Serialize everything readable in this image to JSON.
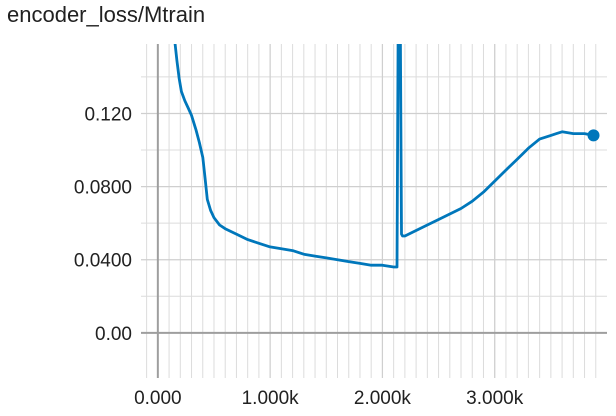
{
  "chart_data": {
    "type": "line",
    "title": "encoder_loss/Mtrain",
    "xlabel": "",
    "ylabel": "",
    "xlim": [
      -150,
      4000
    ],
    "ylim": [
      -0.0225,
      0.158
    ],
    "x_ticks": [
      0,
      1000,
      2000,
      3000
    ],
    "x_tick_labels": [
      "0.000",
      "1.000k",
      "2.000k",
      "3.000k"
    ],
    "y_ticks": [
      0.0,
      0.04,
      0.08,
      0.12
    ],
    "y_tick_labels": [
      "0.00",
      "0.0400",
      "0.0800",
      "0.120"
    ],
    "x_gridlines": [
      -100,
      100,
      200,
      300,
      400,
      500,
      600,
      700,
      800,
      900,
      1000,
      1100,
      1200,
      1300,
      1400,
      1500,
      1600,
      1700,
      1800,
      1900,
      2000,
      2100,
      2200,
      2300,
      2400,
      2500,
      2600,
      2700,
      2800,
      2900,
      3000,
      3100,
      3200,
      3300,
      3400,
      3500,
      3600,
      3700,
      3800,
      3900
    ],
    "y_gridlines": [
      0.02,
      0.06,
      0.1,
      0.14
    ],
    "grid": true,
    "line_color": "#0077bb",
    "series": [
      {
        "color": "#0077bb",
        "x": [
          150,
          170,
          190,
          210,
          240,
          270,
          300,
          340,
          370,
          400,
          420,
          440,
          470,
          500,
          550,
          600,
          700,
          800,
          900,
          1000,
          1100,
          1200,
          1300,
          1400,
          1500,
          1600,
          1700,
          1800,
          1900,
          2000,
          2100,
          2130,
          2140,
          2143,
          2160,
          2170,
          2180,
          2200,
          2300,
          2400,
          2500,
          2600,
          2700,
          2800,
          2900,
          3000,
          3100,
          3200,
          3300,
          3400,
          3500,
          3550,
          3600,
          3700,
          3800,
          3880
        ],
        "y": [
          0.16,
          0.149,
          0.139,
          0.132,
          0.127,
          0.123,
          0.119,
          0.111,
          0.104,
          0.096,
          0.085,
          0.073,
          0.067,
          0.063,
          0.059,
          0.057,
          0.054,
          0.051,
          0.049,
          0.047,
          0.046,
          0.045,
          0.043,
          0.042,
          0.041,
          0.04,
          0.039,
          0.038,
          0.037,
          0.037,
          0.036,
          0.036,
          0.16,
          0.16,
          0.16,
          0.054,
          0.053,
          0.053,
          0.056,
          0.059,
          0.062,
          0.065,
          0.068,
          0.072,
          0.077,
          0.083,
          0.089,
          0.095,
          0.101,
          0.106,
          0.108,
          0.109,
          0.11,
          0.109,
          0.109,
          0.108
        ]
      }
    ]
  }
}
